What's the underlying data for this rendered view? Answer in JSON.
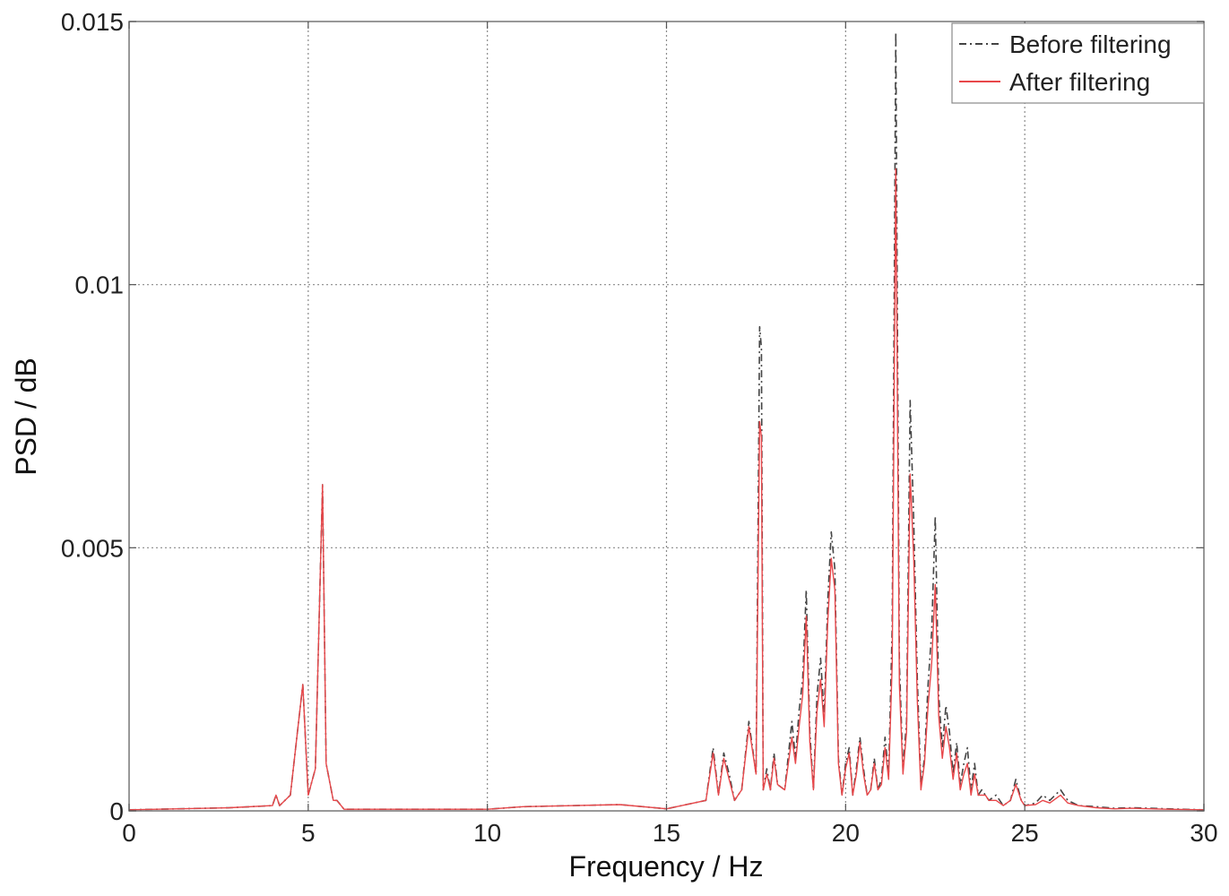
{
  "chart_data": {
    "type": "line",
    "title": "",
    "xlabel": "Frequency / Hz",
    "ylabel": "PSD / dB",
    "xlim": [
      0,
      30
    ],
    "ylim": [
      0,
      0.015
    ],
    "xticks": [
      0,
      5,
      10,
      15,
      20,
      25,
      30
    ],
    "xtick_labels": [
      "0",
      "5",
      "10",
      "15",
      "20",
      "25",
      "30"
    ],
    "yticks": [
      0,
      0.005,
      0.01,
      0.015
    ],
    "ytick_labels": [
      "0",
      "0.005",
      "0.01",
      "0.015"
    ],
    "grid": true,
    "legend_position": "top-right",
    "series": [
      {
        "name": "Before filtering",
        "color": "#444444",
        "style": "dash-dot",
        "x": [
          0,
          2.8,
          4.0,
          4.1,
          4.2,
          4.5,
          4.7,
          4.85,
          5.0,
          5.2,
          5.3,
          5.4,
          5.5,
          5.7,
          5.8,
          6.0,
          8.0,
          10.0,
          11.0,
          13.7,
          15.0,
          16.1,
          16.3,
          16.45,
          16.6,
          16.75,
          16.9,
          17.1,
          17.3,
          17.5,
          17.6,
          17.65,
          17.7,
          17.8,
          17.9,
          18.0,
          18.1,
          18.3,
          18.5,
          18.6,
          18.7,
          18.8,
          18.9,
          19.0,
          19.1,
          19.2,
          19.3,
          19.4,
          19.5,
          19.6,
          19.7,
          19.8,
          19.9,
          20.0,
          20.1,
          20.2,
          20.3,
          20.4,
          20.5,
          20.6,
          20.7,
          20.8,
          20.9,
          21.0,
          21.1,
          21.2,
          21.3,
          21.4,
          21.5,
          21.6,
          21.7,
          21.8,
          21.9,
          22.0,
          22.1,
          22.2,
          22.3,
          22.4,
          22.5,
          22.6,
          22.7,
          22.8,
          22.9,
          23.0,
          23.1,
          23.2,
          23.3,
          23.4,
          23.5,
          23.6,
          23.7,
          23.8,
          23.9,
          24.0,
          24.2,
          24.4,
          24.6,
          24.75,
          24.9,
          25.0,
          25.3,
          25.5,
          25.7,
          26.0,
          26.2,
          26.5,
          27.0,
          27.5,
          28.0,
          29.0,
          30.0
        ],
        "y": [
          2e-05,
          6e-05,
          0.0001,
          0.0003,
          0.0001,
          0.0003,
          0.0015,
          0.0024,
          0.0003,
          0.0008,
          0.0035,
          0.0062,
          0.0009,
          0.0002,
          0.0002,
          3e-05,
          3e-05,
          3e-05,
          8e-05,
          0.00012,
          4e-05,
          0.0002,
          0.0012,
          0.0003,
          0.0011,
          0.0007,
          0.0002,
          0.0004,
          0.0017,
          0.0007,
          0.0092,
          0.0088,
          0.0004,
          0.0008,
          0.0004,
          0.0011,
          0.0005,
          0.0004,
          0.0017,
          0.001,
          0.0019,
          0.0025,
          0.0042,
          0.0015,
          0.0004,
          0.0022,
          0.0029,
          0.0018,
          0.004,
          0.0053,
          0.0046,
          0.001,
          0.0003,
          0.0009,
          0.0012,
          0.0003,
          0.0008,
          0.0014,
          0.0008,
          0.0003,
          0.0004,
          0.001,
          0.0004,
          0.0006,
          0.0014,
          0.0007,
          0.0035,
          0.0148,
          0.0028,
          0.0008,
          0.0017,
          0.0078,
          0.0055,
          0.0025,
          0.0005,
          0.001,
          0.0024,
          0.0034,
          0.0056,
          0.0022,
          0.0012,
          0.002,
          0.0015,
          0.0007,
          0.0013,
          0.0005,
          0.0009,
          0.0012,
          0.0004,
          0.0009,
          0.0003,
          0.0004,
          0.0003,
          0.0002,
          0.0003,
          0.0001,
          0.0002,
          0.0006,
          0.0002,
          0.0001,
          0.00015,
          0.0003,
          0.0002,
          0.0004,
          0.0002,
          0.0001,
          8e-05,
          5e-05,
          6e-05,
          4e-05,
          2e-05
        ]
      },
      {
        "name": "After filtering",
        "color": "#e8474a",
        "style": "solid",
        "x": [
          0,
          2.8,
          4.0,
          4.1,
          4.2,
          4.5,
          4.7,
          4.85,
          5.0,
          5.2,
          5.3,
          5.4,
          5.5,
          5.7,
          5.8,
          6.0,
          8.0,
          10.0,
          11.0,
          13.7,
          15.0,
          16.1,
          16.3,
          16.45,
          16.6,
          16.75,
          16.9,
          17.1,
          17.3,
          17.5,
          17.6,
          17.65,
          17.7,
          17.8,
          17.9,
          18.0,
          18.1,
          18.3,
          18.5,
          18.6,
          18.7,
          18.8,
          18.9,
          19.0,
          19.1,
          19.2,
          19.3,
          19.4,
          19.5,
          19.6,
          19.7,
          19.8,
          19.9,
          20.0,
          20.1,
          20.2,
          20.3,
          20.4,
          20.5,
          20.6,
          20.7,
          20.8,
          20.9,
          21.0,
          21.1,
          21.2,
          21.3,
          21.4,
          21.5,
          21.6,
          21.7,
          21.8,
          21.9,
          22.0,
          22.1,
          22.2,
          22.3,
          22.4,
          22.5,
          22.6,
          22.7,
          22.8,
          22.9,
          23.0,
          23.1,
          23.2,
          23.3,
          23.4,
          23.5,
          23.6,
          23.7,
          23.8,
          23.9,
          24.0,
          24.2,
          24.4,
          24.6,
          24.75,
          24.9,
          25.0,
          25.3,
          25.5,
          25.7,
          26.0,
          26.2,
          26.5,
          27.0,
          27.5,
          28.0,
          29.0,
          30.0
        ],
        "y": [
          2e-05,
          6e-05,
          0.0001,
          0.0003,
          0.0001,
          0.0003,
          0.0015,
          0.0024,
          0.0003,
          0.0008,
          0.0035,
          0.0062,
          0.0009,
          0.0002,
          0.0002,
          3e-05,
          3e-05,
          3e-05,
          8e-05,
          0.00012,
          4e-05,
          0.0002,
          0.0011,
          0.0003,
          0.001,
          0.0006,
          0.0002,
          0.0004,
          0.0016,
          0.0007,
          0.0074,
          0.0071,
          0.0004,
          0.0007,
          0.0004,
          0.001,
          0.0005,
          0.0004,
          0.0014,
          0.0009,
          0.0016,
          0.0022,
          0.0037,
          0.0013,
          0.0004,
          0.0019,
          0.0025,
          0.0016,
          0.0036,
          0.0048,
          0.0042,
          0.0009,
          0.0003,
          0.0008,
          0.0011,
          0.0003,
          0.0007,
          0.0013,
          0.0007,
          0.0003,
          0.0004,
          0.0009,
          0.0004,
          0.0005,
          0.0012,
          0.0006,
          0.0028,
          0.0122,
          0.0024,
          0.0007,
          0.0015,
          0.0064,
          0.0048,
          0.0021,
          0.0004,
          0.0009,
          0.002,
          0.0028,
          0.0043,
          0.0018,
          0.001,
          0.0016,
          0.0012,
          0.0006,
          0.0011,
          0.0004,
          0.0007,
          0.0009,
          0.0003,
          0.0007,
          0.0003,
          0.0003,
          0.0003,
          0.0002,
          0.0002,
          0.0001,
          0.0002,
          0.0005,
          0.0002,
          0.0001,
          0.00012,
          0.0002,
          0.00015,
          0.0003,
          0.00015,
          0.0001,
          6e-05,
          4e-05,
          5e-05,
          3e-05,
          2e-05
        ]
      }
    ]
  }
}
